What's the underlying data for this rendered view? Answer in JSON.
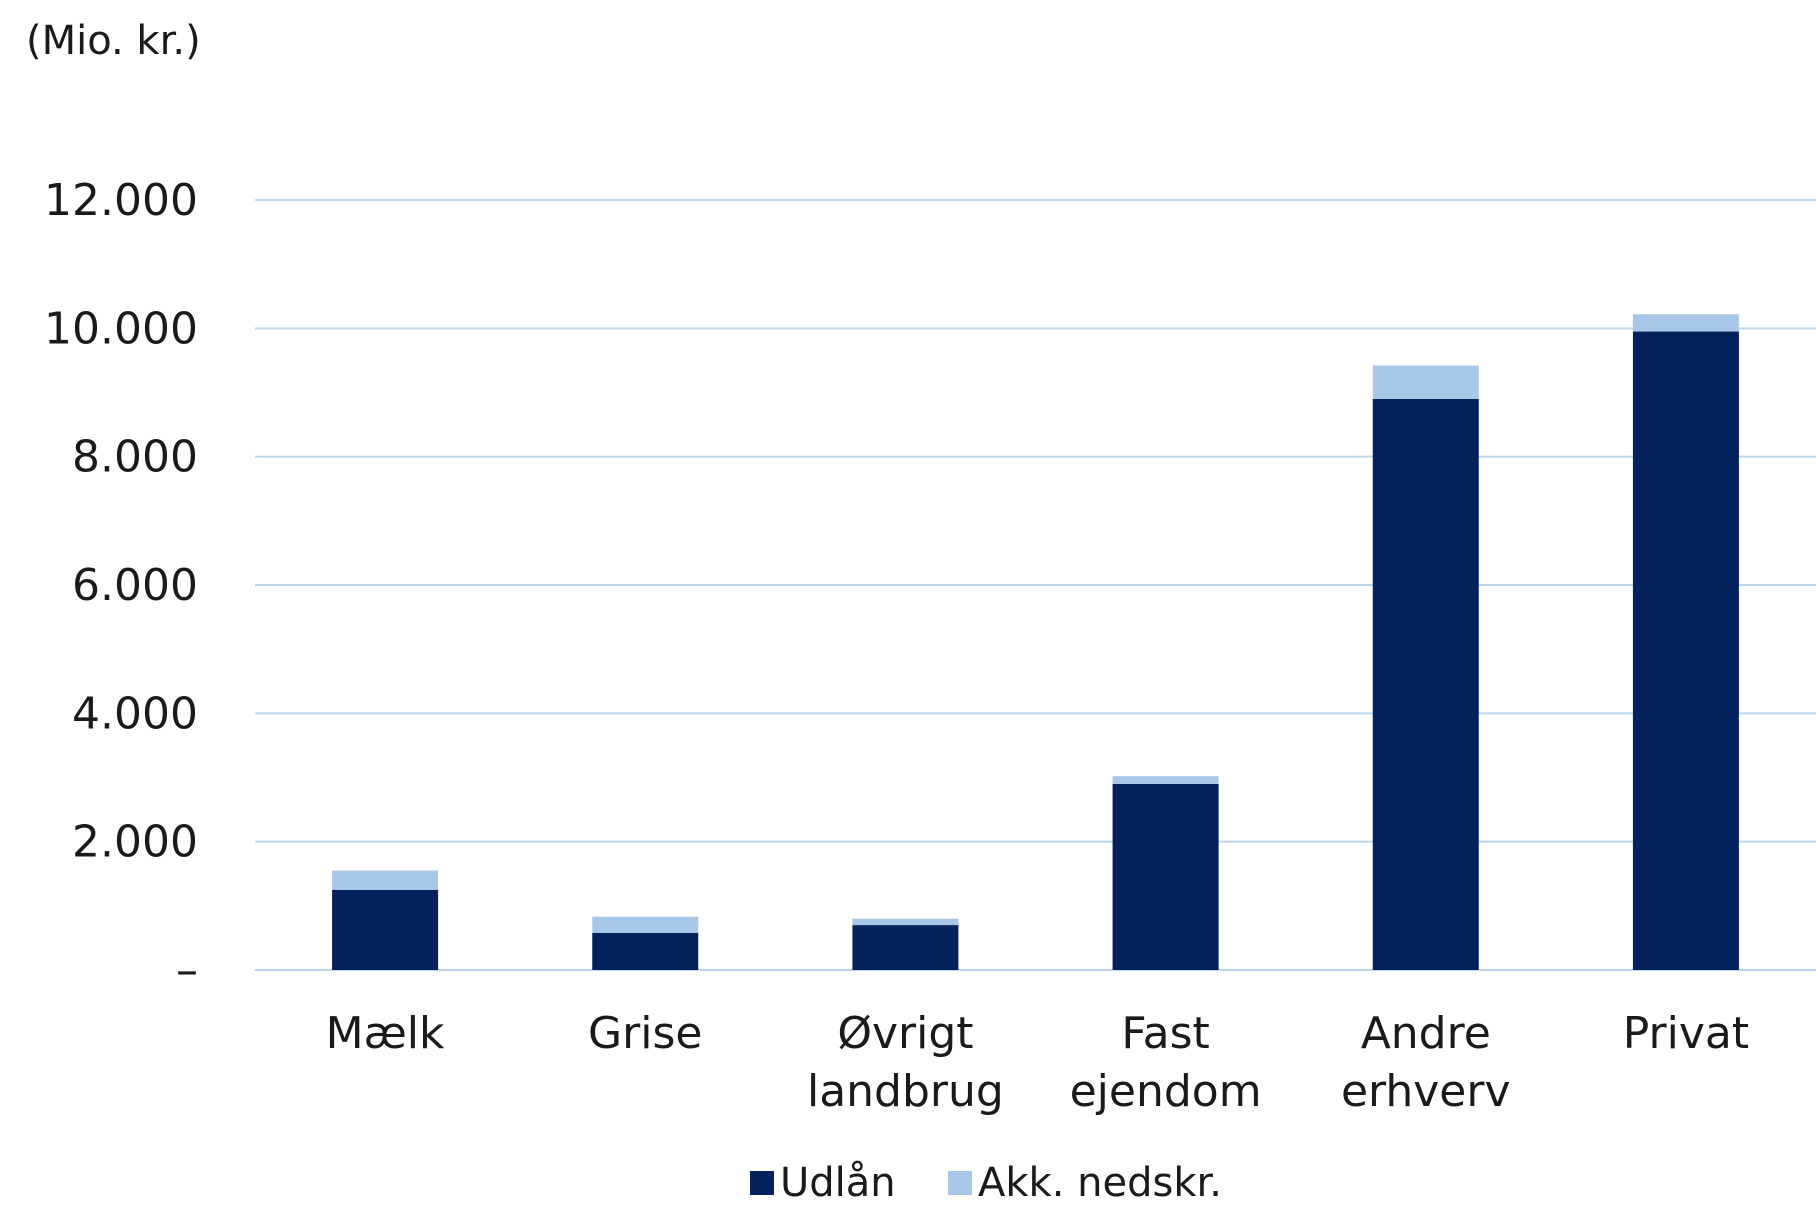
{
  "chart_data": {
    "type": "bar",
    "stacked": true,
    "unit_label": "(Mio. kr.)",
    "categories": [
      [
        "Mælk"
      ],
      [
        "Grise"
      ],
      [
        "Øvrigt",
        "landbrug"
      ],
      [
        "Fast",
        "ejendom"
      ],
      [
        "Andre",
        "erhverv"
      ],
      [
        "Privat"
      ]
    ],
    "series": [
      {
        "name": "Udlån",
        "color": "#03215a",
        "values": [
          1250,
          580,
          700,
          2900,
          8900,
          9950
        ]
      },
      {
        "name": "Akk. nedskr.",
        "color": "#a9c8e8",
        "values": [
          300,
          250,
          100,
          120,
          520,
          270
        ]
      }
    ],
    "ylim": [
      0,
      12000
    ],
    "yticks": [
      0,
      2000,
      4000,
      6000,
      8000,
      10000,
      12000
    ],
    "ytick_labels": [
      "–",
      "2.000",
      "4.000",
      "6.000",
      "8.000",
      "10.000",
      "12.000"
    ],
    "grid": true,
    "grid_color": "#bcd6ee",
    "legend_position": "bottom"
  }
}
